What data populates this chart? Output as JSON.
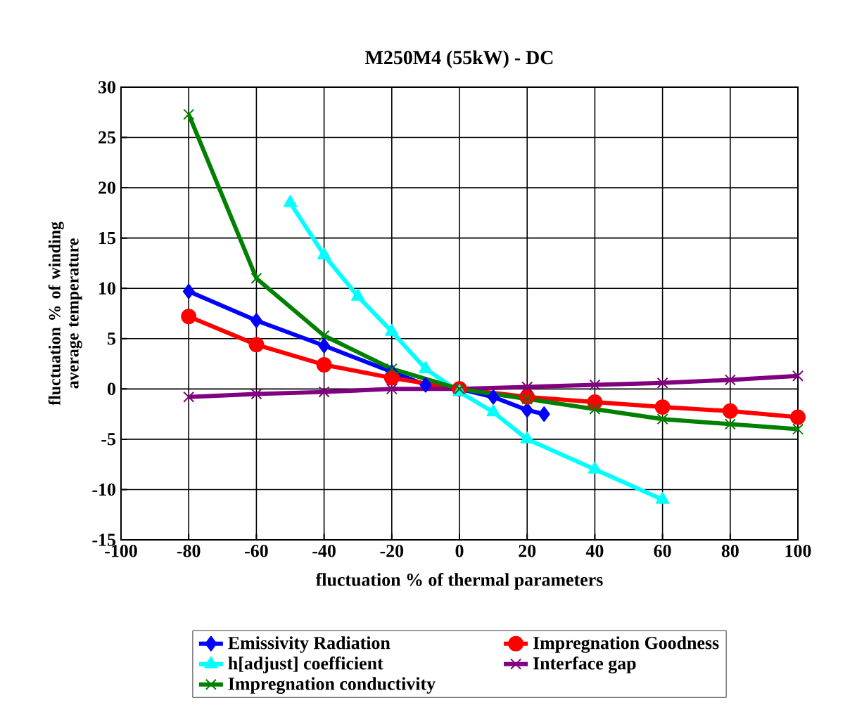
{
  "chart_data": {
    "type": "line",
    "title": "M250M4 (55kW) - DC",
    "xlabel": "fluctuation % of thermal parameters",
    "ylabel": "fluctuation % of winding average temperature",
    "xlim": [
      -100,
      100
    ],
    "ylim": [
      -15,
      30
    ],
    "xticks": [
      -100,
      -80,
      -60,
      -40,
      -20,
      0,
      20,
      40,
      60,
      80,
      100
    ],
    "yticks": [
      -15,
      -10,
      -5,
      0,
      5,
      10,
      15,
      20,
      25,
      30
    ],
    "grid": true,
    "legend": "bottom",
    "series": [
      {
        "name": "Emissivity Radiation",
        "color": "#0000ff",
        "marker": "diamond",
        "x": [
          -80,
          -60,
          -40,
          -20,
          -10,
          0,
          10,
          20,
          25
        ],
        "values": [
          9.7,
          6.8,
          4.3,
          1.7,
          0.4,
          0,
          -0.8,
          -2.1,
          -2.5
        ]
      },
      {
        "name": "Impregnation Goodness",
        "color": "#ff0000",
        "marker": "circle",
        "x": [
          -80,
          -60,
          -40,
          -20,
          0,
          20,
          40,
          60,
          80,
          100
        ],
        "values": [
          7.2,
          4.4,
          2.4,
          1.1,
          0,
          -0.8,
          -1.3,
          -1.8,
          -2.2,
          -2.8
        ]
      },
      {
        "name": "h[adjust] coefficient",
        "color": "#00ffff",
        "marker": "triangle",
        "x": [
          -50,
          -40,
          -30,
          -20,
          -10,
          0,
          10,
          20,
          40,
          60
        ],
        "values": [
          18.5,
          13.3,
          9.2,
          5.7,
          2,
          -0.3,
          -2.3,
          -5,
          -8,
          -11
        ]
      },
      {
        "name": "Interface gap",
        "color": "#800080",
        "marker": "cross",
        "x": [
          -80,
          -60,
          -40,
          -20,
          0,
          20,
          40,
          60,
          80,
          100
        ],
        "values": [
          -0.8,
          -0.5,
          -0.3,
          0,
          0,
          0.2,
          0.4,
          0.6,
          0.9,
          1.3
        ]
      },
      {
        "name": "Impregnation conductivity",
        "color": "#008000",
        "marker": "cross",
        "x": [
          -80,
          -60,
          -40,
          -20,
          0,
          20,
          40,
          60,
          80,
          100
        ],
        "values": [
          27.3,
          11,
          5.3,
          2,
          0,
          -1,
          -2,
          -3,
          -3.5,
          -4
        ]
      }
    ]
  }
}
